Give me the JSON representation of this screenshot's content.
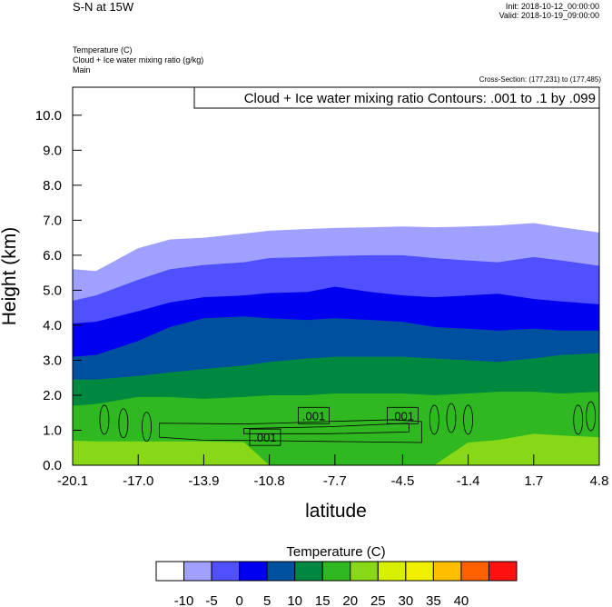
{
  "header": {
    "title": "S-N at 15W",
    "init": "Init: 2018-10-12_00:00:00",
    "valid": "Valid: 2018-10-19_09:00:00",
    "fields": [
      "Temperature   (C)",
      "Cloud + Ice water mixing ratio   (g/kg)",
      "Main"
    ],
    "cross_section": "Cross-Section: (177,231) to (177,485)"
  },
  "chart_data": {
    "type": "area",
    "contour_info": "Cloud + Ice water mixing ratio Contours: .001 to .1 by .099",
    "xlabel": "latitude",
    "ylabel": "Height (km)",
    "xlim": [
      -20.1,
      4.8
    ],
    "ylim": [
      0,
      10.8
    ],
    "x_ticks": [
      -20.1,
      -17.0,
      -13.9,
      -10.8,
      -7.7,
      -4.5,
      -1.4,
      1.7,
      4.8
    ],
    "x_tick_labels": [
      "-20.1",
      "-17.0",
      "-13.9",
      "-10.8",
      "-7.7",
      "-4.5",
      "-1.4",
      "1.7",
      "4.8"
    ],
    "y_ticks": [
      0,
      1,
      2,
      3,
      4,
      5,
      6,
      7,
      8,
      9,
      10
    ],
    "y_tick_labels": [
      "0.0",
      "1.0",
      "2.0",
      "3.0",
      "4.0",
      "5.0",
      "6.0",
      "7.0",
      "8.0",
      "9.0",
      "10.0"
    ],
    "sample_x": [
      -20.1,
      -19.0,
      -17.0,
      -15.5,
      -13.9,
      -12.0,
      -10.8,
      -9.0,
      -7.7,
      -6.0,
      -4.5,
      -3.0,
      -1.4,
      0.0,
      1.7,
      3.0,
      4.8
    ],
    "series": [
      {
        "color": "#a0a0ff",
        "values": [
          5.6,
          5.55,
          6.2,
          6.45,
          6.5,
          6.62,
          6.7,
          6.75,
          6.78,
          6.8,
          6.82,
          6.8,
          6.82,
          6.85,
          6.92,
          6.8,
          6.65
        ]
      },
      {
        "color": "#5050ff",
        "values": [
          4.7,
          4.85,
          5.3,
          5.6,
          5.72,
          5.8,
          5.92,
          5.95,
          5.98,
          6.0,
          6.0,
          5.92,
          5.85,
          5.8,
          5.95,
          5.85,
          5.7
        ]
      },
      {
        "color": "#0000f0",
        "values": [
          4.05,
          4.1,
          4.4,
          4.65,
          4.8,
          4.85,
          4.92,
          4.95,
          5.1,
          4.95,
          4.85,
          4.8,
          4.85,
          4.9,
          4.75,
          4.68,
          4.6
        ]
      },
      {
        "color": "#0050a0",
        "values": [
          3.1,
          3.15,
          3.55,
          3.95,
          4.2,
          4.25,
          4.2,
          4.15,
          4.2,
          4.15,
          4.1,
          3.95,
          3.9,
          3.85,
          3.9,
          3.85,
          3.85
        ]
      },
      {
        "color": "#008840",
        "values": [
          2.45,
          2.45,
          2.55,
          2.65,
          2.75,
          2.85,
          2.95,
          3.05,
          3.1,
          3.1,
          3.1,
          3.05,
          3.0,
          2.95,
          3.05,
          3.15,
          3.2
        ]
      },
      {
        "color": "#30b820",
        "values": [
          1.7,
          1.75,
          1.95,
          1.95,
          1.9,
          1.95,
          2.0,
          2.0,
          2.05,
          2.05,
          2.05,
          2.0,
          2.05,
          2.1,
          2.1,
          2.05,
          2.1
        ]
      },
      {
        "color": "#88d818",
        "values": [
          0.7,
          0.68,
          0.68,
          0.68,
          0.68,
          0.66,
          0.0,
          0.0,
          0.0,
          0.0,
          0.0,
          0.0,
          0.65,
          0.72,
          0.9,
          0.85,
          0.8
        ]
      }
    ],
    "contour_labels": [
      {
        "text": ".001",
        "x": -8.7,
        "y": 1.42
      },
      {
        "text": ".001",
        "x": -4.5,
        "y": 1.42
      },
      {
        "text": ".001",
        "x": -11.0,
        "y": 0.8
      }
    ],
    "colorbar": {
      "title": "Temperature  (C)",
      "colors": [
        "#ffffff",
        "#a0a0ff",
        "#5050ff",
        "#0000f0",
        "#0050a0",
        "#008840",
        "#30b820",
        "#88d818",
        "#d8f000",
        "#f0f000",
        "#ffbf00",
        "#ff6000",
        "#ff1010"
      ],
      "labels": [
        "-10",
        "-5",
        "0",
        "5",
        "10",
        "15",
        "20",
        "25",
        "30",
        "35",
        "40"
      ]
    },
    "grid": false,
    "legend": "bottom"
  }
}
